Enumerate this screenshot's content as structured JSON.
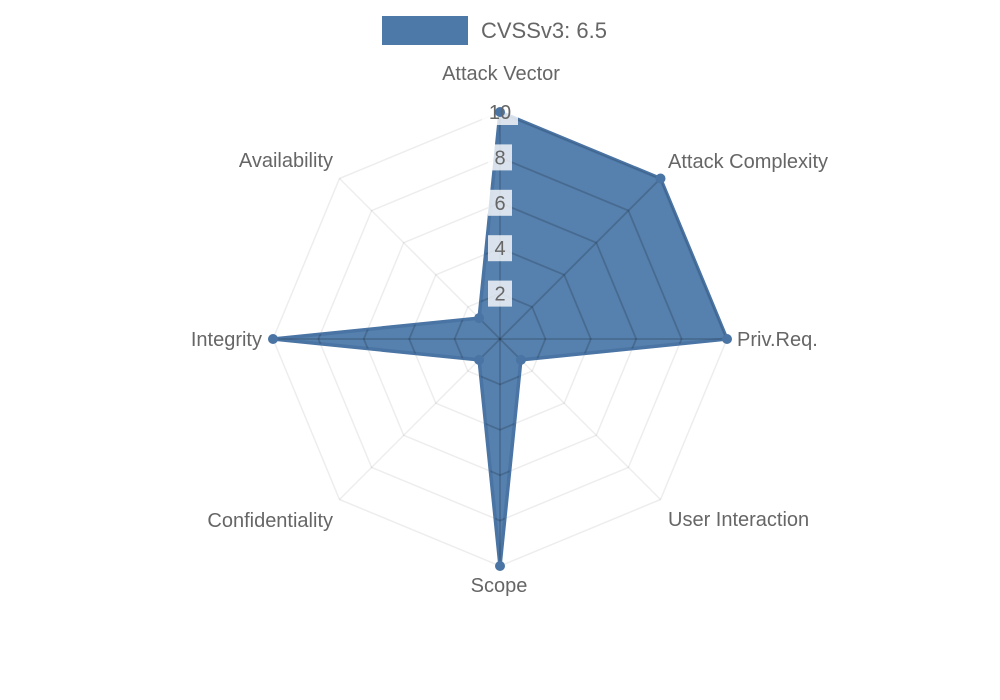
{
  "chart_data": {
    "type": "radar",
    "axes": [
      "Attack Vector",
      "Attack Complexity",
      "Priv.Req.",
      "User Interaction",
      "Scope",
      "Confidentiality",
      "Integrity",
      "Availability"
    ],
    "series": [
      {
        "name": "CVSSv3: 6.5",
        "values": [
          10,
          10,
          10,
          1.3,
          10,
          1.3,
          10,
          1.3
        ]
      }
    ],
    "scale": {
      "min": 0,
      "max": 10,
      "ticks": [
        2,
        4,
        6,
        8,
        10
      ]
    },
    "grid": true,
    "legend_position": "top",
    "colors": {
      "background": "#ffffff",
      "fill": "#4d79a9",
      "fill_opacity": 0.95,
      "stroke": "#4a74a3",
      "point": "#4a74a3",
      "grid_inner": "rgba(0,0,0,0.16)",
      "grid_outer": "rgba(0,0,0,0.07)",
      "tick_backdrop": "rgba(255,255,255,0.78)",
      "tick_text": "#666666",
      "label_text": "#666666",
      "legend_text": "#666666"
    }
  }
}
